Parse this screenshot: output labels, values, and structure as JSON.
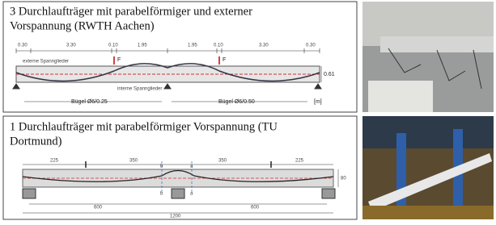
{
  "panel_1": {
    "title_line_1": "3 Durchlaufträger mit parabelförmiger und externer",
    "title_line_2": "Vorspannung (RWTH Aachen)",
    "dimensions": [
      "0.30",
      "3.30",
      "0.10",
      "1.95",
      "1.95",
      "0.10",
      "3.30",
      "0.30"
    ],
    "loads": [
      "F",
      "F"
    ],
    "label_external": "externe Spannglieder",
    "label_internal": "interne Spannglieder",
    "height": "0.61",
    "stirrups_left": "Bügel Ø6/0.25",
    "stirrups_right": "Bügel Ø6/0.50",
    "unit": "[m]"
  },
  "panel_2": {
    "title_line_1": "1 Durchlaufträger mit parabelförmiger Vorspannung (TU",
    "title_line_2": "Dortmund)",
    "dimensions": [
      "225",
      "350",
      "350",
      "225"
    ],
    "sections": [
      "b",
      "b",
      "a",
      "a"
    ],
    "height": "80",
    "spans": [
      "600",
      "600"
    ],
    "total": "1200"
  }
}
